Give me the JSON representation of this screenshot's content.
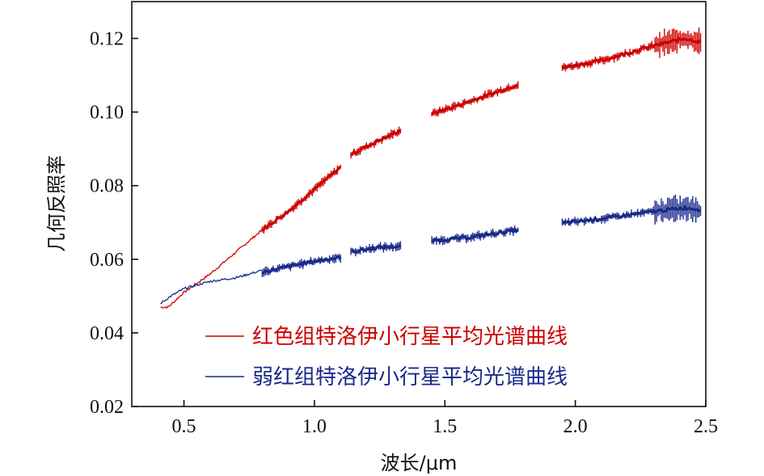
{
  "chart_data": {
    "type": "line",
    "title": "",
    "xlabel": "波长/μm",
    "ylabel": "几何反照率",
    "xlim": [
      0.3,
      2.5
    ],
    "ylim": [
      0.02,
      0.13
    ],
    "x_ticks": [
      0.5,
      1.0,
      1.5,
      2.0,
      2.5
    ],
    "x_tick_labels": [
      "0.5",
      "1.0",
      "1.5",
      "2.0",
      "2.5"
    ],
    "y_ticks": [
      0.02,
      0.04,
      0.06,
      0.08,
      0.1,
      0.12
    ],
    "y_tick_labels": [
      "0.02",
      "0.04",
      "0.06",
      "0.08",
      "0.10",
      "0.12"
    ],
    "grid": false,
    "legend_position": "bottom-center",
    "series": [
      {
        "name": "红色组特洛伊小行星平均光谱曲线",
        "color": "#cc0000",
        "visible_segment": {
          "x": [
            0.41,
            0.44,
            0.5,
            0.6,
            0.7,
            0.8
          ],
          "y": [
            0.047,
            0.047,
            0.051,
            0.056,
            0.062,
            0.068
          ]
        },
        "error_segments": [
          {
            "x": [
              0.8,
              0.9,
              1.0,
              1.1
            ],
            "y": [
              0.068,
              0.073,
              0.079,
              0.085
            ]
          },
          {
            "x": [
              1.14,
              1.24,
              1.33
            ],
            "y": [
              0.0885,
              0.092,
              0.095
            ]
          },
          {
            "x": [
              1.45,
              1.6,
              1.78
            ],
            "y": [
              0.0995,
              0.103,
              0.1075
            ]
          },
          {
            "x": [
              1.95,
              2.1,
              2.3,
              2.42,
              2.48
            ],
            "y": [
              0.112,
              0.114,
              0.118,
              0.12,
              0.119
            ]
          }
        ]
      },
      {
        "name": "弱红组特洛伊小行星平均光谱曲线",
        "color": "#1a2a8a",
        "visible_segment": {
          "x": [
            0.41,
            0.45,
            0.5,
            0.6,
            0.7,
            0.8
          ],
          "y": [
            0.048,
            0.05,
            0.052,
            0.054,
            0.055,
            0.057
          ]
        },
        "error_segments": [
          {
            "x": [
              0.8,
              0.9,
              1.0,
              1.1
            ],
            "y": [
              0.0565,
              0.058,
              0.0595,
              0.0605
            ]
          },
          {
            "x": [
              1.14,
              1.24,
              1.33
            ],
            "y": [
              0.062,
              0.0632,
              0.0635
            ]
          },
          {
            "x": [
              1.45,
              1.6,
              1.78
            ],
            "y": [
              0.065,
              0.066,
              0.068
            ]
          },
          {
            "x": [
              1.95,
              2.1,
              2.3,
              2.42,
              2.48
            ],
            "y": [
              0.0698,
              0.071,
              0.073,
              0.074,
              0.0735
            ]
          }
        ]
      }
    ]
  }
}
